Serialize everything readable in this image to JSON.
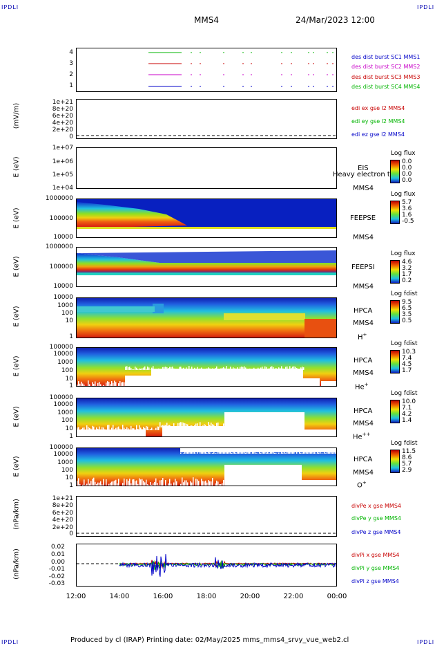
{
  "corners": {
    "tl": "IPDLI",
    "tr": "IPDLI",
    "bl": "IPDLI",
    "br": "IPDLI"
  },
  "header": {
    "spacecraft": "MMS4",
    "datetime": "24/Mar/2023 12:00"
  },
  "footer": "Produced by cl (IRAP)   Printing date: 02/May/2025   mms_mms4_srvy_vue_web2.cl",
  "x_ticks": [
    "12:00",
    "14:00",
    "16:00",
    "18:00",
    "20:00",
    "22:00",
    "00:00"
  ],
  "panels": [
    {
      "id": "burst",
      "ylabel": "",
      "ticks": [
        "4",
        "3",
        "2",
        "1"
      ],
      "legend": [
        {
          "text": "des dist burst SC1 MMS1",
          "color": "#0000c8"
        },
        {
          "text": "des dist burst SC2 MMS2",
          "color": "#c800c8"
        },
        {
          "text": "des dist burst SC3 MMS3",
          "color": "#c80000"
        },
        {
          "text": "des dist burst SC4 MMS4",
          "color": "#00b400"
        }
      ]
    },
    {
      "id": "edi",
      "ylabel": "(mV/m)",
      "ticks": [
        "1e+21",
        "8e+20",
        "6e+20",
        "4e+20",
        "2e+20",
        "0"
      ],
      "legend": [
        {
          "text": "edi ex gse l2 MMS4",
          "color": "#c80000"
        },
        {
          "text": "edi ey gse l2 MMS4",
          "color": "#00b400"
        },
        {
          "text": "edi ez gse l2 MMS4",
          "color": "#0000c8"
        }
      ]
    },
    {
      "id": "eis",
      "ylabel": "E (eV)",
      "ticks": [
        "1e+07",
        "1e+06",
        "1e+05",
        "1e+04"
      ],
      "side": [
        "EIS",
        "MMS4"
      ],
      "overlay": "Heavy electron to",
      "cb_title": "Log flux",
      "cb_vals": [
        "0.0",
        "0.0",
        "0.0",
        "0.0"
      ]
    },
    {
      "id": "feepse",
      "ylabel": "E (eV)",
      "ticks": [
        "1000000",
        "100000",
        "10000"
      ],
      "side": [
        "FEEPSE",
        "MMS4"
      ],
      "cb_title": "Log flux",
      "cb_vals": [
        "5.7",
        "3.6",
        "1.6",
        "-0.5"
      ]
    },
    {
      "id": "feepsi",
      "ylabel": "E (eV)",
      "ticks": [
        "1000000",
        "100000",
        "10000"
      ],
      "side": [
        "FEEPSI",
        "MMS4"
      ],
      "cb_title": "Log flux",
      "cb_vals": [
        "4.6",
        "3.2",
        "1.7",
        "0.2"
      ]
    },
    {
      "id": "hpca_h",
      "ylabel": "E (eV)",
      "ticks": [
        "10000",
        "1000",
        "100",
        "10",
        "1"
      ],
      "side": [
        "HPCA",
        "MMS4"
      ],
      "ion": "H",
      "ion_sup": "+",
      "cb_title": "Log fdist",
      "cb_vals": [
        "9.5",
        "6.5",
        "3.5",
        "0.5"
      ]
    },
    {
      "id": "hpca_he",
      "ylabel": "E (eV)",
      "ticks": [
        "100000",
        "10000",
        "1000",
        "100",
        "10",
        "1"
      ],
      "side": [
        "HPCA",
        "MMS4"
      ],
      "ion": "He",
      "ion_sup": "+",
      "cb_title": "Log fdist",
      "cb_vals": [
        "10.3",
        "7.4",
        "4.5",
        "1.7"
      ]
    },
    {
      "id": "hpca_hepp",
      "ylabel": "E (eV)",
      "ticks": [
        "100000",
        "10000",
        "1000",
        "100",
        "10",
        "1"
      ],
      "side": [
        "HPCA",
        "MMS4"
      ],
      "ion": "He",
      "ion_sup": "++",
      "cb_title": "Log fdist",
      "cb_vals": [
        "10.0",
        "7.1",
        "4.2",
        "1.4"
      ]
    },
    {
      "id": "hpca_o",
      "ylabel": "E (eV)",
      "ticks": [
        "100000",
        "10000",
        "1000",
        "100",
        "10",
        "1"
      ],
      "side": [
        "HPCA",
        "MMS4"
      ],
      "ion": "O",
      "ion_sup": "+",
      "cb_title": "Log fdist",
      "cb_vals": [
        "11.5",
        "8.6",
        "5.7",
        "2.9"
      ]
    },
    {
      "id": "divpe",
      "ylabel": "(nPa/km)",
      "ticks": [
        "1e+21",
        "8e+20",
        "6e+20",
        "4e+20",
        "2e+20",
        "0"
      ],
      "legend": [
        {
          "text": "divPe x gse MMS4",
          "color": "#c80000"
        },
        {
          "text": "divPe y gse MMS4",
          "color": "#00b400"
        },
        {
          "text": "divPe z gse MMS4",
          "color": "#0000c8"
        }
      ]
    },
    {
      "id": "divpi",
      "ylabel": "(nPa/km)",
      "ticks": [
        "0.02",
        "0.01",
        "0.00",
        "-0.01",
        "-0.02",
        "-0.03"
      ],
      "legend": [
        {
          "text": "divPi x gse MMS4",
          "color": "#c80000"
        },
        {
          "text": "divPi y gse MMS4",
          "color": "#00b400"
        },
        {
          "text": "divPi z gse MMS4",
          "color": "#0000c8"
        }
      ]
    }
  ],
  "chart_data": {
    "type": "heatmap",
    "x_range": [
      "12:00",
      "00:00"
    ],
    "burst_intervals_hours": [
      [
        15.4,
        16.9
      ]
    ],
    "divpi_range": [
      -0.03,
      0.02
    ]
  }
}
